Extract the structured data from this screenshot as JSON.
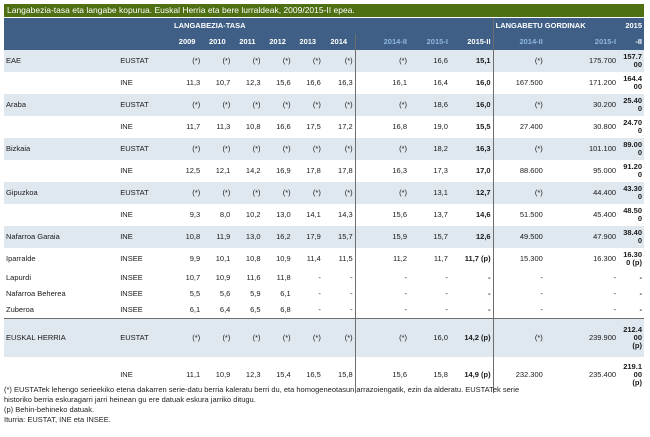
{
  "title": "Langabezia-tasa eta langabe kopurua. Euskal Herria eta bere lurraldeak, 2009/2015-II epea.",
  "header": {
    "group_rate": "LANGABEZIA-TASA",
    "group_count": "LANGABETU GORDINAK",
    "years": [
      "2009",
      "2010",
      "2011",
      "2012",
      "2013",
      "2014",
      "2014-II",
      "2015-I",
      "2015-II"
    ],
    "count_cols": [
      "2014-II",
      "2015-I",
      "2015-II"
    ],
    "last_top": "2015",
    "last_bot": "-II"
  },
  "rows": [
    {
      "region": "EAE",
      "source": "EUSTAT",
      "vals": [
        "(*)",
        "(*)",
        "(*)",
        "(*)",
        "(*)",
        "(*)",
        "(*)",
        "16,6",
        "15,1"
      ],
      "counts": [
        "(*)",
        "175.700"
      ],
      "last": [
        "157.7",
        "00"
      ]
    },
    {
      "region": "",
      "source": "INE",
      "vals": [
        "11,3",
        "10,7",
        "12,3",
        "15,6",
        "16,6",
        "16,3",
        "16,1",
        "16,4",
        "16,0"
      ],
      "counts": [
        "167.500",
        "171.200"
      ],
      "last": [
        "164.4",
        "00"
      ]
    },
    {
      "region": "Araba",
      "source": "EUSTAT",
      "vals": [
        "(*)",
        "(*)",
        "(*)",
        "(*)",
        "(*)",
        "(*)",
        "(*)",
        "18,6",
        "16,0"
      ],
      "counts": [
        "(*)",
        "30.200"
      ],
      "last": [
        "25.40",
        "0"
      ]
    },
    {
      "region": "",
      "source": "INE",
      "vals": [
        "11,7",
        "11,3",
        "10,8",
        "16,6",
        "17,5",
        "17,2",
        "16,8",
        "19,0",
        "15,5"
      ],
      "counts": [
        "27.400",
        "30.800"
      ],
      "last": [
        "24.70",
        "0"
      ]
    },
    {
      "region": "Bizkaia",
      "source": "EUSTAT",
      "vals": [
        "(*)",
        "(*)",
        "(*)",
        "(*)",
        "(*)",
        "(*)",
        "(*)",
        "18,2",
        "16,3"
      ],
      "counts": [
        "(*)",
        "101.100"
      ],
      "last": [
        "89.00",
        "0"
      ]
    },
    {
      "region": "",
      "source": "INE",
      "vals": [
        "12,5",
        "12,1",
        "14,2",
        "16,9",
        "17,8",
        "17,8",
        "16,3",
        "17,3",
        "17,0"
      ],
      "counts": [
        "88.600",
        "95.000"
      ],
      "last": [
        "91.20",
        "0"
      ]
    },
    {
      "region": "Gipuzkoa",
      "source": "EUSTAT",
      "vals": [
        "(*)",
        "(*)",
        "(*)",
        "(*)",
        "(*)",
        "(*)",
        "(*)",
        "13,1",
        "12,7"
      ],
      "counts": [
        "(*)",
        "44.400"
      ],
      "last": [
        "43.30",
        "0"
      ]
    },
    {
      "region": "",
      "source": "INE",
      "vals": [
        "9,3",
        "8,0",
        "10,2",
        "13,0",
        "14,1",
        "14,3",
        "15,6",
        "13,7",
        "14,6"
      ],
      "counts": [
        "51.500",
        "45.400"
      ],
      "last": [
        "48.50",
        "0"
      ]
    },
    {
      "region": "Nafarroa Garaia",
      "source": "INE",
      "vals": [
        "10,8",
        "11,9",
        "13,0",
        "16,2",
        "17,9",
        "15,7",
        "15,9",
        "15,7",
        "12,6"
      ],
      "counts": [
        "49.500",
        "47.900"
      ],
      "last": [
        "38.40",
        "0"
      ]
    },
    {
      "region": "Iparralde",
      "source": "INSEE",
      "vals": [
        "9,9",
        "10,1",
        "10,8",
        "10,9",
        "11,4",
        "11,5",
        "11,2",
        "11,7",
        "11,7 (p)"
      ],
      "counts": [
        "15.300",
        "16.300"
      ],
      "last": [
        "16.30",
        "0 (p)"
      ]
    }
  ],
  "small_rows": [
    {
      "region": "Lapurdi",
      "source": "INSEE",
      "vals": [
        "10,7",
        "10,9",
        "11,6",
        "11,8",
        "-",
        "-",
        "-",
        "-",
        "-"
      ],
      "counts": [
        "-",
        "-"
      ],
      "last": "-"
    },
    {
      "region": "Nafarroa Beherea",
      "source": "INSEE",
      "vals": [
        "5,5",
        "5,6",
        "5,9",
        "6,1",
        "-",
        "-",
        "-",
        "-",
        "-"
      ],
      "counts": [
        "-",
        "-"
      ],
      "last": "-"
    },
    {
      "region": "Zuberoa",
      "source": "INSEE",
      "vals": [
        "6,1",
        "6,4",
        "6,5",
        "6,8",
        "-",
        "-",
        "-",
        "-",
        "-"
      ],
      "counts": [
        "-",
        "-"
      ],
      "last": "-"
    }
  ],
  "eh": {
    "region": "EUSKAL HERRIA",
    "eustat": {
      "source": "EUSTAT",
      "vals": [
        "(*)",
        "(*)",
        "(*)",
        "(*)",
        "(*)",
        "(*)",
        "(*)",
        "16,0",
        "14,2 (p)"
      ],
      "counts": [
        "(*)",
        "239.900"
      ],
      "last": [
        "212.4",
        "00",
        "(p)"
      ]
    },
    "ine": {
      "source": "INE",
      "vals": [
        "11,1",
        "10,9",
        "12,3",
        "15,4",
        "16,5",
        "15,8",
        "15,6",
        "15,8",
        "14,9 (p)"
      ],
      "counts": [
        "232.300",
        "235.400"
      ],
      "last": [
        "219.1",
        "00",
        "(p)"
      ]
    }
  },
  "footnotes": [
    "(*) EUSTATek lehengo serieekiko etena dakarren serie-datu berria kaleratu berri du, eta homogeneotasun arrazoiengatik, ezin da alderatu. EUSTATek serie",
    "historiko berria eskuragarri jarri heinean gu ere datuak eskura jarriko ditugu.",
    "(p) Behin-behineko datuak.",
    "Iturria: EUSTAT, INE eta INSEE."
  ]
}
